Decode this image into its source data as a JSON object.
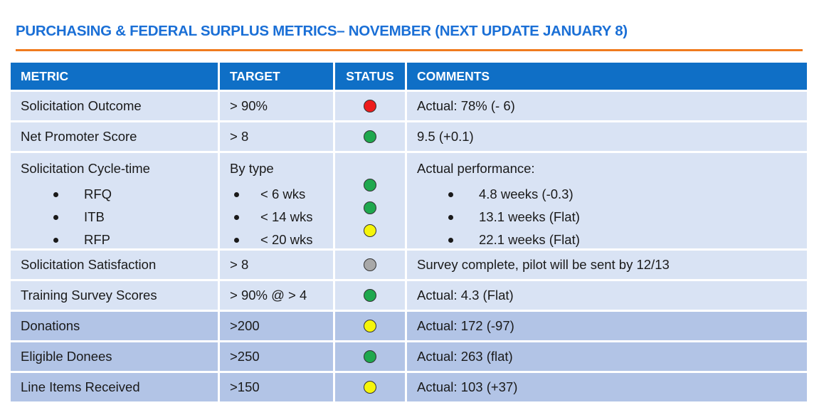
{
  "title": "PURCHASING & FEDERAL SURPLUS METRICS– NOVEMBER (NEXT UPDATE JANUARY 8)",
  "colors": {
    "title": "#1a6fd6",
    "rule": "#f07b1e",
    "header_bg": "#0f6fc6",
    "row_light": "#d9e3f4",
    "row_dark": "#b2c4e6",
    "status_red": "#ee1c1c",
    "status_green": "#1fa84e",
    "status_yellow": "#f5f50a",
    "status_gray": "#a8a8a8"
  },
  "headers": {
    "metric": "METRIC",
    "target": "TARGET",
    "status": "STATUS",
    "comments": "COMMENTS"
  },
  "rows": [
    {
      "metric": "Solicitation Outcome",
      "target": "> 90%",
      "status": "red",
      "comment": "Actual: 78% (- 6)"
    },
    {
      "metric": "Net Promoter Score",
      "target": "> 8",
      "status": "green",
      "comment": "9.5 (+0.1)"
    },
    {
      "metric": "Solicitation Cycle-time",
      "target": "By type",
      "comment": "Actual performance:",
      "sub": [
        {
          "metric": "RFQ",
          "target": "< 6 wks",
          "status": "green",
          "comment": "4.8 weeks (-0.3)"
        },
        {
          "metric": "ITB",
          "target": "< 14 wks",
          "status": "green",
          "comment": "13.1 weeks (Flat)"
        },
        {
          "metric": "RFP",
          "target": "< 20 wks",
          "status": "yellow",
          "comment": "22.1 weeks (Flat)"
        }
      ]
    },
    {
      "metric": "Solicitation Satisfaction",
      "target": "> 8",
      "status": "gray",
      "comment": "Survey complete, pilot will be sent by 12/13"
    },
    {
      "metric": "Training Survey Scores",
      "target": "> 90% @ > 4",
      "status": "green",
      "comment": "Actual: 4.3 (Flat)"
    },
    {
      "metric": "Donations",
      "target": ">200",
      "status": "yellow",
      "comment": "Actual: 172 (-97)"
    },
    {
      "metric": "Eligible Donees",
      "target": ">250",
      "status": "green",
      "comment": "Actual: 263 (flat)"
    },
    {
      "metric": "Line Items Received",
      "target": ">150",
      "status": "yellow",
      "comment": "Actual: 103 (+37)"
    }
  ]
}
